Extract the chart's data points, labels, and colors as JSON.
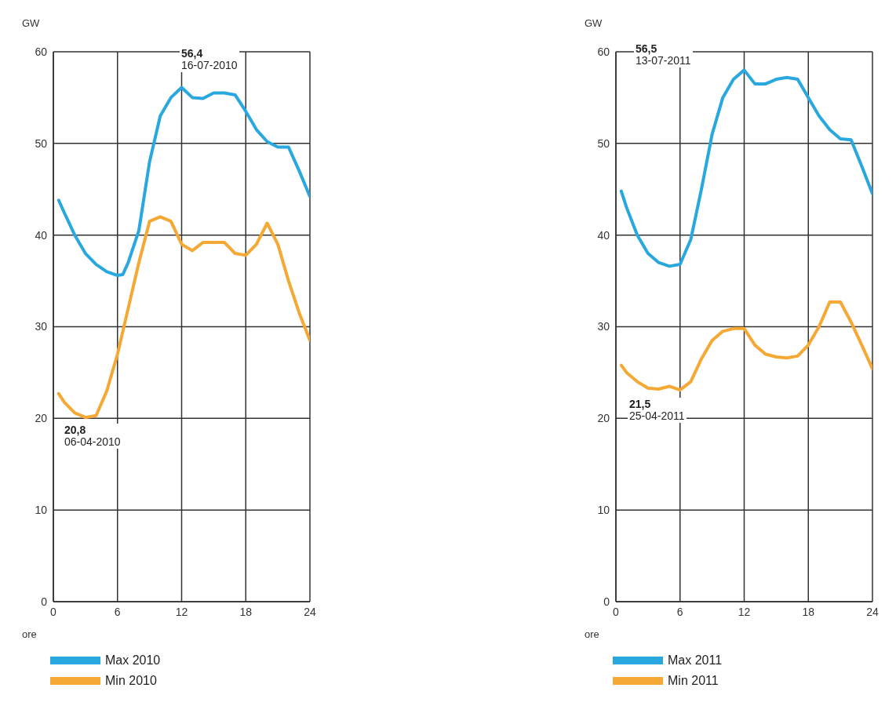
{
  "chart_data": [
    {
      "type": "line",
      "xlabel": "ore",
      "ylabel": "GW",
      "x": [
        0.5,
        1,
        2,
        3,
        4,
        5,
        6,
        6.5,
        7,
        8,
        9,
        10,
        11,
        12,
        13,
        14,
        15,
        16,
        17,
        18,
        19,
        20,
        21,
        22,
        23,
        24
      ],
      "series": [
        {
          "name": "Max 2010",
          "color": "#29a8e0",
          "values": [
            43.8,
            42.5,
            40,
            38,
            36.8,
            36,
            35.6,
            35.7,
            37,
            40.5,
            48,
            53,
            55,
            56.1,
            55,
            54.9,
            55.5,
            55.5,
            55.3,
            53.5,
            51.5,
            50.2,
            49.6,
            49.6,
            47,
            44.2
          ]
        },
        {
          "name": "Min 2010",
          "color": "#f5a833",
          "values": [
            22.7,
            21.8,
            20.6,
            20.1,
            20.3,
            23,
            27,
            29.5,
            32,
            37,
            41.5,
            42,
            41.5,
            39,
            38.3,
            39.2,
            39.2,
            39.2,
            38,
            37.8,
            39,
            41.3,
            39,
            35,
            31.5,
            28.5
          ]
        }
      ],
      "annotations": [
        "56,4\n16-07-2010",
        "20,8\n06-04-2010"
      ],
      "xlim": [
        0,
        24
      ],
      "xticks": [
        0,
        6,
        12,
        18,
        24
      ],
      "ylim": [
        0,
        60
      ],
      "yticks": [
        0,
        10,
        20,
        30,
        40,
        50,
        60
      ],
      "grid": true,
      "legend": "bottom",
      "marker": "none",
      "line_style": "solid"
    },
    {
      "type": "line",
      "xlabel": "ore",
      "ylabel": "GW",
      "x": [
        0.5,
        1,
        2,
        3,
        4,
        5,
        6,
        7,
        8,
        9,
        10,
        11,
        12,
        13,
        14,
        15,
        16,
        17,
        18,
        19,
        20,
        21,
        22,
        23,
        24
      ],
      "series": [
        {
          "name": "Max 2011",
          "color": "#29a8e0",
          "values": [
            44.8,
            43,
            40,
            38,
            37,
            36.6,
            36.8,
            39.5,
            45,
            51,
            55,
            57,
            58,
            56.5,
            56.5,
            57,
            57.2,
            57,
            55,
            53,
            51.5,
            50.5,
            50.4,
            47.5,
            44.5
          ]
        },
        {
          "name": "Min 2011",
          "color": "#f5a833",
          "values": [
            25.8,
            25,
            24,
            23.3,
            23.2,
            23.5,
            23.1,
            24,
            26.5,
            28.5,
            29.5,
            29.8,
            29.8,
            28,
            27,
            26.7,
            26.6,
            26.8,
            28,
            30,
            32.7,
            32.7,
            30.5,
            28,
            25.4
          ]
        }
      ],
      "annotations": [
        "56,5\n13-07-2011",
        "21,5\n25-04-2011"
      ],
      "xlim": [
        0,
        24
      ],
      "xticks": [
        0,
        6,
        12,
        18,
        24
      ],
      "ylim": [
        0,
        60
      ],
      "yticks": [
        0,
        10,
        20,
        30,
        40,
        50,
        60
      ],
      "grid": true,
      "legend": "bottom",
      "marker": "none",
      "line_style": "solid"
    }
  ]
}
